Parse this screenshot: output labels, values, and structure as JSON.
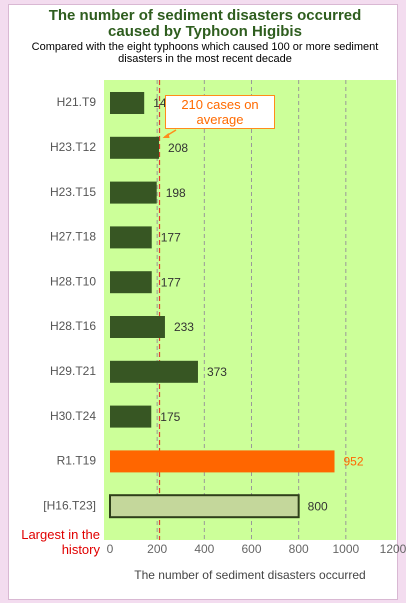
{
  "chart_data": {
    "type": "barh",
    "title": "The number of sediment disasters occurred caused by Typhoon Higibis",
    "subtitle": "Compared with the eight typhoons which caused 100 or more sediment disasters in the most recent decade",
    "categories": [
      "H21.T9",
      "H23.T12",
      "H23.T15",
      "H27.T18",
      "H28.T10",
      "H28.T16",
      "H29.T21",
      "H30.T24",
      "R1.T19",
      "[H16.T23]"
    ],
    "values": [
      145,
      208,
      198,
      177,
      177,
      233,
      373,
      175,
      952,
      800
    ],
    "colors": [
      "#375623",
      "#375623",
      "#375623",
      "#375623",
      "#375623",
      "#375623",
      "#375623",
      "#375623",
      "#ff6600",
      "#c4d79b"
    ],
    "value_label_colors": [
      "#333333",
      "#333333",
      "#333333",
      "#333333",
      "#333333",
      "#333333",
      "#333333",
      "#333333",
      "#ff6600",
      "#333333"
    ],
    "reference_line": {
      "value": 210,
      "label": "210 cases on average",
      "color": "#e0402a"
    },
    "note": "Largest in the history",
    "xlabel": "The number of sediment disasters occurred",
    "xlim": [
      0,
      1200
    ],
    "xticks": [
      0,
      200,
      400,
      600,
      800,
      1000,
      1200
    ],
    "grid": true
  }
}
